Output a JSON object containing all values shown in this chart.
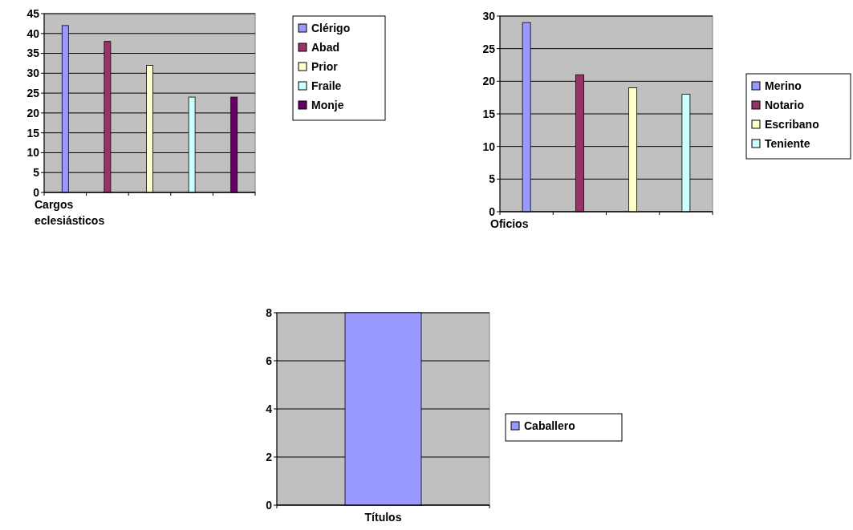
{
  "chart_data": [
    {
      "type": "bar",
      "xlabel": "Cargos eclesiásticos",
      "categories": [
        null
      ],
      "ylim": [
        0,
        45
      ],
      "yticks": [
        0,
        5,
        10,
        15,
        20,
        25,
        30,
        35,
        40,
        45
      ],
      "grid": "y",
      "legend": "right",
      "series": [
        {
          "name": "Clérigo",
          "color": "#9999ff",
          "values": [
            42
          ]
        },
        {
          "name": "Abad",
          "color": "#993366",
          "values": [
            38
          ]
        },
        {
          "name": "Prior",
          "color": "#ffffcc",
          "values": [
            32
          ]
        },
        {
          "name": "Fraile",
          "color": "#ccffff",
          "values": [
            24
          ]
        },
        {
          "name": "Monje",
          "color": "#660066",
          "values": [
            24
          ]
        }
      ]
    },
    {
      "type": "bar",
      "xlabel": "Oficios",
      "categories": [
        null
      ],
      "ylim": [
        0,
        30
      ],
      "yticks": [
        0,
        5,
        10,
        15,
        20,
        25,
        30
      ],
      "grid": "y",
      "legend": "right",
      "series": [
        {
          "name": "Merino",
          "color": "#9999ff",
          "values": [
            29
          ]
        },
        {
          "name": "Notario",
          "color": "#993366",
          "values": [
            21
          ]
        },
        {
          "name": "Escribano",
          "color": "#ffffcc",
          "values": [
            19
          ]
        },
        {
          "name": "Teniente",
          "color": "#ccffff",
          "values": [
            18
          ]
        }
      ]
    },
    {
      "type": "bar",
      "xlabel": "Títulos",
      "categories": [
        null
      ],
      "ylim": [
        0,
        8
      ],
      "yticks": [
        0,
        2,
        4,
        6,
        8
      ],
      "grid": "y",
      "legend": "right",
      "series": [
        {
          "name": "Caballero",
          "color": "#9999ff",
          "values": [
            8
          ]
        }
      ]
    }
  ]
}
